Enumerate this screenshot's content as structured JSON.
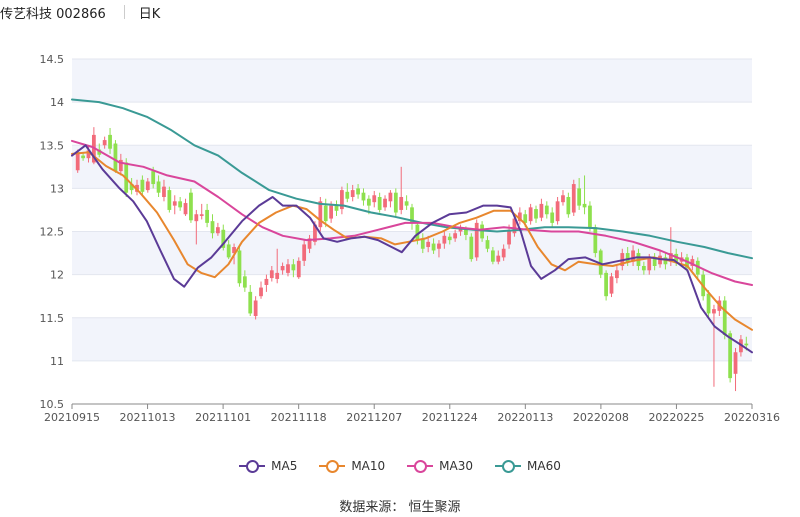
{
  "header": {
    "title": "传艺科技 002866",
    "period": "日K"
  },
  "source": "数据来源：  恒生聚源",
  "colors": {
    "up": "#f26b7a",
    "down": "#8ee04e",
    "MA5": "#5b3b97",
    "MA10": "#e8872e",
    "MA30": "#d9469b",
    "MA60": "#3a9a95",
    "band": "#f2f4fb",
    "grid": "#e3e6ef"
  },
  "chart_data": {
    "type": "candlestick",
    "title": "",
    "ylim": [
      10.5,
      14.5
    ],
    "yticks": [
      "14.5",
      "14",
      "13.5",
      "13",
      "12.5",
      "12",
      "11.5",
      "11",
      "10.5"
    ],
    "xticks": [
      "20210915",
      "20211013",
      "20211101",
      "20211118",
      "20211207",
      "20211224",
      "20220113",
      "20220208",
      "20220225",
      "20220316"
    ],
    "grid": true,
    "legend_position": "bottom",
    "series": [
      {
        "name": "MA5"
      },
      {
        "name": "MA10"
      },
      {
        "name": "MA30"
      },
      {
        "name": "MA60"
      }
    ],
    "ma_points": {
      "MA5": [
        [
          0,
          13.38
        ],
        [
          8,
          13.5
        ],
        [
          18,
          13.22
        ],
        [
          28,
          13.0
        ],
        [
          36,
          12.85
        ],
        [
          44,
          12.62
        ],
        [
          52,
          12.28
        ],
        [
          60,
          11.95
        ],
        [
          66,
          11.86
        ],
        [
          74,
          12.08
        ],
        [
          82,
          12.2
        ],
        [
          90,
          12.38
        ],
        [
          100,
          12.62
        ],
        [
          110,
          12.8
        ],
        [
          118,
          12.9
        ],
        [
          124,
          12.8
        ],
        [
          132,
          12.8
        ],
        [
          140,
          12.66
        ],
        [
          148,
          12.42
        ],
        [
          156,
          12.38
        ],
        [
          164,
          12.42
        ],
        [
          172,
          12.44
        ],
        [
          180,
          12.4
        ],
        [
          188,
          12.32
        ],
        [
          194,
          12.26
        ],
        [
          202,
          12.45
        ],
        [
          212,
          12.6
        ],
        [
          222,
          12.7
        ],
        [
          232,
          12.72
        ],
        [
          242,
          12.8
        ],
        [
          250,
          12.8
        ],
        [
          258,
          12.78
        ],
        [
          264,
          12.5
        ],
        [
          270,
          12.1
        ],
        [
          276,
          11.95
        ],
        [
          284,
          12.05
        ],
        [
          292,
          12.18
        ],
        [
          302,
          12.2
        ],
        [
          312,
          12.12
        ],
        [
          322,
          12.16
        ],
        [
          332,
          12.2
        ],
        [
          340,
          12.2
        ],
        [
          346,
          12.18
        ],
        [
          354,
          12.17
        ],
        [
          362,
          12.05
        ],
        [
          370,
          11.62
        ],
        [
          378,
          11.4
        ],
        [
          386,
          11.28
        ],
        [
          394,
          11.18
        ],
        [
          400,
          11.1
        ]
      ],
      "MA10": [
        [
          0,
          13.4
        ],
        [
          10,
          13.42
        ],
        [
          20,
          13.26
        ],
        [
          30,
          13.15
        ],
        [
          40,
          12.95
        ],
        [
          50,
          12.72
        ],
        [
          60,
          12.4
        ],
        [
          68,
          12.12
        ],
        [
          76,
          12.02
        ],
        [
          84,
          11.97
        ],
        [
          92,
          12.12
        ],
        [
          100,
          12.38
        ],
        [
          110,
          12.6
        ],
        [
          120,
          12.72
        ],
        [
          130,
          12.8
        ],
        [
          138,
          12.76
        ],
        [
          146,
          12.63
        ],
        [
          154,
          12.52
        ],
        [
          162,
          12.42
        ],
        [
          172,
          12.44
        ],
        [
          182,
          12.42
        ],
        [
          190,
          12.35
        ],
        [
          198,
          12.38
        ],
        [
          208,
          12.42
        ],
        [
          218,
          12.5
        ],
        [
          228,
          12.6
        ],
        [
          238,
          12.66
        ],
        [
          248,
          12.74
        ],
        [
          258,
          12.74
        ],
        [
          266,
          12.6
        ],
        [
          274,
          12.32
        ],
        [
          282,
          12.12
        ],
        [
          290,
          12.05
        ],
        [
          298,
          12.15
        ],
        [
          308,
          12.12
        ],
        [
          318,
          12.1
        ],
        [
          330,
          12.16
        ],
        [
          342,
          12.2
        ],
        [
          352,
          12.16
        ],
        [
          362,
          12.1
        ],
        [
          372,
          11.85
        ],
        [
          382,
          11.62
        ],
        [
          390,
          11.48
        ],
        [
          400,
          11.36
        ]
      ],
      "MA30": [
        [
          0,
          13.55
        ],
        [
          12,
          13.48
        ],
        [
          28,
          13.3
        ],
        [
          42,
          13.25
        ],
        [
          56,
          13.15
        ],
        [
          72,
          13.08
        ],
        [
          86,
          12.9
        ],
        [
          100,
          12.7
        ],
        [
          112,
          12.55
        ],
        [
          124,
          12.45
        ],
        [
          138,
          12.4
        ],
        [
          152,
          12.42
        ],
        [
          166,
          12.45
        ],
        [
          180,
          12.52
        ],
        [
          196,
          12.6
        ],
        [
          212,
          12.6
        ],
        [
          226,
          12.55
        ],
        [
          240,
          12.52
        ],
        [
          254,
          12.55
        ],
        [
          268,
          12.52
        ],
        [
          282,
          12.5
        ],
        [
          298,
          12.5
        ],
        [
          314,
          12.45
        ],
        [
          330,
          12.38
        ],
        [
          346,
          12.28
        ],
        [
          362,
          12.15
        ],
        [
          376,
          12.02
        ],
        [
          390,
          11.92
        ],
        [
          400,
          11.88
        ]
      ],
      "MA60": [
        [
          0,
          14.03
        ],
        [
          16,
          14.0
        ],
        [
          30,
          13.93
        ],
        [
          44,
          13.83
        ],
        [
          58,
          13.68
        ],
        [
          72,
          13.5
        ],
        [
          86,
          13.38
        ],
        [
          100,
          13.18
        ],
        [
          116,
          12.98
        ],
        [
          132,
          12.88
        ],
        [
          146,
          12.82
        ],
        [
          160,
          12.8
        ],
        [
          176,
          12.72
        ],
        [
          190,
          12.67
        ],
        [
          206,
          12.6
        ],
        [
          220,
          12.55
        ],
        [
          236,
          12.52
        ],
        [
          250,
          12.5
        ],
        [
          264,
          12.52
        ],
        [
          278,
          12.55
        ],
        [
          292,
          12.55
        ],
        [
          308,
          12.54
        ],
        [
          324,
          12.5
        ],
        [
          340,
          12.45
        ],
        [
          356,
          12.38
        ],
        [
          372,
          12.32
        ],
        [
          386,
          12.25
        ],
        [
          400,
          12.19
        ]
      ]
    },
    "candles": [
      [
        13.21,
        13.42,
        13.18,
        13.45
      ],
      [
        13.38,
        13.35,
        13.32,
        13.42
      ],
      [
        13.35,
        13.44,
        13.3,
        13.5
      ],
      [
        13.3,
        13.62,
        13.28,
        13.71
      ],
      [
        13.45,
        13.39,
        13.36,
        13.52
      ],
      [
        13.5,
        13.56,
        13.46,
        13.6
      ],
      [
        13.62,
        13.46,
        13.4,
        13.7
      ],
      [
        13.52,
        13.2,
        13.18,
        13.56
      ],
      [
        13.2,
        13.33,
        13.15,
        13.4
      ],
      [
        13.3,
        12.95,
        12.9,
        13.35
      ],
      [
        13.05,
        12.98,
        12.93,
        13.12
      ],
      [
        12.96,
        13.04,
        12.92,
        13.1
      ],
      [
        13.1,
        12.96,
        12.92,
        13.15
      ],
      [
        12.98,
        13.08,
        12.95,
        13.12
      ],
      [
        13.2,
        13.05,
        13.0,
        13.25
      ],
      [
        13.08,
        12.95,
        12.9,
        13.15
      ],
      [
        12.9,
        13.02,
        12.85,
        13.1
      ],
      [
        12.98,
        12.75,
        12.72,
        13.02
      ],
      [
        12.8,
        12.85,
        12.7,
        12.92
      ],
      [
        12.85,
        12.78,
        12.74,
        12.9
      ],
      [
        12.7,
        12.83,
        12.68,
        12.88
      ],
      [
        12.95,
        12.63,
        12.6,
        13.0
      ],
      [
        12.62,
        12.7,
        12.35,
        12.75
      ],
      [
        12.68,
        12.7,
        12.64,
        12.82
      ],
      [
        12.75,
        12.6,
        12.55,
        12.82
      ],
      [
        12.62,
        12.48,
        12.42,
        12.7
      ],
      [
        12.48,
        12.55,
        12.45,
        12.6
      ],
      [
        12.52,
        12.31,
        12.28,
        12.58
      ],
      [
        12.35,
        12.2,
        12.18,
        12.4
      ],
      [
        12.25,
        12.32,
        12.12,
        12.36
      ],
      [
        12.28,
        11.9,
        11.86,
        12.32
      ],
      [
        11.98,
        11.85,
        11.8,
        12.05
      ],
      [
        11.8,
        11.55,
        11.52,
        11.88
      ],
      [
        11.52,
        11.7,
        11.48,
        11.75
      ],
      [
        11.75,
        11.85,
        11.72,
        11.92
      ],
      [
        11.88,
        11.95,
        11.8,
        12.0
      ],
      [
        11.96,
        12.05,
        11.92,
        12.1
      ],
      [
        11.95,
        12.02,
        11.9,
        12.3
      ],
      [
        12.05,
        12.1,
        12.0,
        12.14
      ],
      [
        12.02,
        12.12,
        11.98,
        12.18
      ],
      [
        12.12,
        12.05,
        11.97,
        12.18
      ],
      [
        11.97,
        12.16,
        11.95,
        12.2
      ],
      [
        12.16,
        12.35,
        12.1,
        12.4
      ],
      [
        12.3,
        12.42,
        12.25,
        12.46
      ],
      [
        12.38,
        12.58,
        12.34,
        12.62
      ],
      [
        12.55,
        12.85,
        12.5,
        12.9
      ],
      [
        12.8,
        12.62,
        12.55,
        12.88
      ],
      [
        12.65,
        12.8,
        12.6,
        12.85
      ],
      [
        12.8,
        12.74,
        12.68,
        12.86
      ],
      [
        12.76,
        12.98,
        12.7,
        13.02
      ],
      [
        12.96,
        12.88,
        12.84,
        13.06
      ],
      [
        12.9,
        12.98,
        12.85,
        13.04
      ],
      [
        13.0,
        12.93,
        12.88,
        13.05
      ],
      [
        12.95,
        12.86,
        12.8,
        13.0
      ],
      [
        12.88,
        12.8,
        12.7,
        12.92
      ],
      [
        12.84,
        12.92,
        12.78,
        12.97
      ],
      [
        12.9,
        12.75,
        12.72,
        12.95
      ],
      [
        12.78,
        12.88,
        12.74,
        12.92
      ],
      [
        12.85,
        12.95,
        12.78,
        12.98
      ],
      [
        12.95,
        12.72,
        12.68,
        13.0
      ],
      [
        12.75,
        12.9,
        12.7,
        13.25
      ],
      [
        12.85,
        12.8,
        12.75,
        12.92
      ],
      [
        12.78,
        12.6,
        12.52,
        12.82
      ],
      [
        12.58,
        12.4,
        12.35,
        12.62
      ],
      [
        12.42,
        12.3,
        12.25,
        12.48
      ],
      [
        12.32,
        12.38,
        12.26,
        12.45
      ],
      [
        12.36,
        12.28,
        12.24,
        12.42
      ],
      [
        12.3,
        12.36,
        12.2,
        12.4
      ],
      [
        12.36,
        12.45,
        12.3,
        12.5
      ],
      [
        12.44,
        12.4,
        12.35,
        12.48
      ],
      [
        12.42,
        12.48,
        12.38,
        12.52
      ],
      [
        12.5,
        12.55,
        12.45,
        12.58
      ],
      [
        12.52,
        12.46,
        12.4,
        12.56
      ],
      [
        12.44,
        12.18,
        12.15,
        12.48
      ],
      [
        12.2,
        12.6,
        12.16,
        12.64
      ],
      [
        12.58,
        12.42,
        12.38,
        12.62
      ],
      [
        12.4,
        12.3,
        12.26,
        12.45
      ],
      [
        12.28,
        12.15,
        12.12,
        12.32
      ],
      [
        12.15,
        12.22,
        12.12,
        12.28
      ],
      [
        12.2,
        12.3,
        12.16,
        12.35
      ],
      [
        12.35,
        12.52,
        12.3,
        12.58
      ],
      [
        12.48,
        12.65,
        12.44,
        12.7
      ],
      [
        12.62,
        12.72,
        12.58,
        12.78
      ],
      [
        12.7,
        12.6,
        12.55,
        12.75
      ],
      [
        12.62,
        12.78,
        12.58,
        12.82
      ],
      [
        12.76,
        12.65,
        12.6,
        12.8
      ],
      [
        12.66,
        12.82,
        12.62,
        12.88
      ],
      [
        12.8,
        12.7,
        12.65,
        12.85
      ],
      [
        12.72,
        12.6,
        12.55,
        12.78
      ],
      [
        12.62,
        12.85,
        12.58,
        12.9
      ],
      [
        12.84,
        12.92,
        12.8,
        12.98
      ],
      [
        12.9,
        12.7,
        12.66,
        12.95
      ],
      [
        12.72,
        13.05,
        12.68,
        13.1
      ],
      [
        13.0,
        12.8,
        12.75,
        13.12
      ],
      [
        12.82,
        12.78,
        12.7,
        13.15
      ],
      [
        12.8,
        12.55,
        12.5,
        12.85
      ],
      [
        12.55,
        12.25,
        12.2,
        12.58
      ],
      [
        12.28,
        12.0,
        11.96,
        12.3
      ],
      [
        12.02,
        11.75,
        11.7,
        12.05
      ],
      [
        11.78,
        11.98,
        11.74,
        12.02
      ],
      [
        11.96,
        12.05,
        11.9,
        12.1
      ],
      [
        12.1,
        12.25,
        12.05,
        12.3
      ],
      [
        12.25,
        12.15,
        12.1,
        12.32
      ],
      [
        12.15,
        12.28,
        12.1,
        12.34
      ],
      [
        12.25,
        12.1,
        12.05,
        12.3
      ],
      [
        12.1,
        12.05,
        12.0,
        12.15
      ],
      [
        12.05,
        12.2,
        12.0,
        12.24
      ],
      [
        12.18,
        12.1,
        12.05,
        12.25
      ],
      [
        12.12,
        12.22,
        12.08,
        12.28
      ],
      [
        12.2,
        12.12,
        12.06,
        12.26
      ],
      [
        12.15,
        12.25,
        12.1,
        12.55
      ],
      [
        12.24,
        12.15,
        12.1,
        12.3
      ],
      [
        12.15,
        12.2,
        12.1,
        12.26
      ],
      [
        12.2,
        12.08,
        12.03,
        12.24
      ],
      [
        12.1,
        12.18,
        12.05,
        12.22
      ],
      [
        12.16,
        12.0,
        11.95,
        12.2
      ],
      [
        12.0,
        11.75,
        11.7,
        12.05
      ],
      [
        11.78,
        11.55,
        11.5,
        11.82
      ],
      [
        11.55,
        11.6,
        10.7,
        11.65
      ],
      [
        11.58,
        11.7,
        11.52,
        11.75
      ],
      [
        11.7,
        11.3,
        11.25,
        11.75
      ],
      [
        11.32,
        10.8,
        10.75,
        11.35
      ],
      [
        10.85,
        11.1,
        10.65,
        11.15
      ],
      [
        11.1,
        11.25,
        11.05,
        11.3
      ],
      [
        11.2,
        11.18,
        11.12,
        11.28
      ]
    ]
  }
}
